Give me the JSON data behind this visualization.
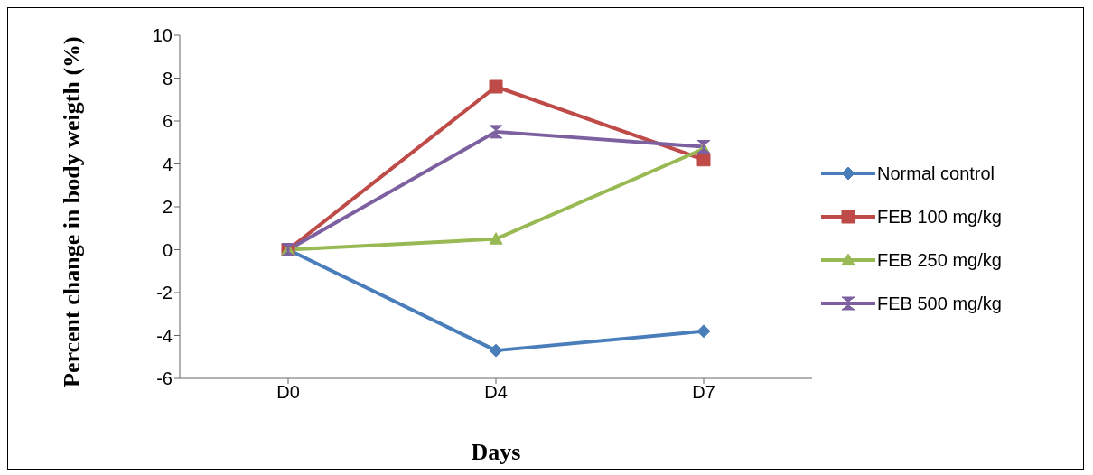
{
  "chart_data": {
    "type": "line",
    "xlabel": "Days",
    "ylabel": "Percent change in body weigth (%)",
    "categories": [
      "D0",
      "D4",
      "D7"
    ],
    "series": [
      {
        "name": "Normal control",
        "color": "#4a7ebb",
        "values": [
          0,
          -4.7,
          -3.8
        ],
        "marker": "diamond"
      },
      {
        "name": "FEB 100 mg/kg",
        "color": "#be4b48",
        "values": [
          0,
          7.6,
          4.2
        ],
        "marker": "square"
      },
      {
        "name": "FEB 250 mg/kg",
        "color": "#98b954",
        "values": [
          0,
          0.5,
          4.7
        ],
        "marker": "triangle"
      },
      {
        "name": "FEB 500 mg/kg",
        "color": "#7d60a0",
        "values": [
          0,
          5.5,
          4.8
        ],
        "marker": "star"
      }
    ],
    "ylim": [
      -6,
      10
    ],
    "yticks": [
      -6,
      -4,
      -2,
      0,
      2,
      4,
      6,
      8,
      10
    ],
    "legend": "right",
    "line_style": "solid"
  }
}
